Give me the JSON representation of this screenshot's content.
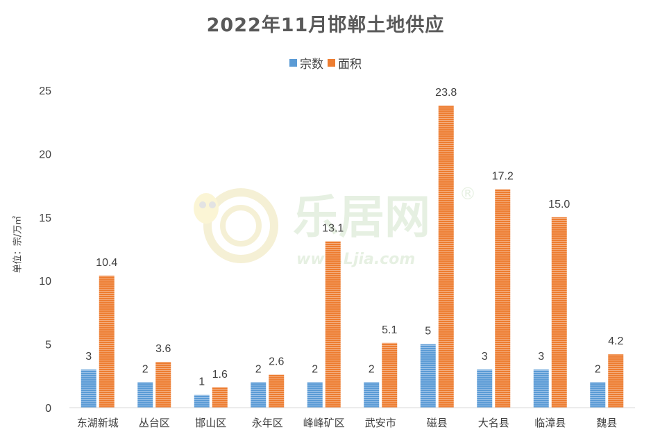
{
  "chart_data": {
    "type": "bar",
    "title": "2022年11月邯郸土地供应",
    "ylabel": "单位：宗/万㎡",
    "xlabel": "",
    "ylim": [
      0,
      25
    ],
    "yticks": [
      "0",
      "5",
      "10",
      "15",
      "20",
      "25"
    ],
    "grid": false,
    "legend_position": "top-center",
    "categories": [
      "东湖新城",
      "丛台区",
      "邯山区",
      "永年区",
      "峰峰矿区",
      "武安市",
      "磁县",
      "大名县",
      "临漳县",
      "魏县"
    ],
    "series": [
      {
        "name": "宗数",
        "color": "#5b9bd5",
        "values": [
          3,
          2,
          1,
          2,
          2,
          2,
          5,
          3,
          3,
          2
        ],
        "labels": [
          "3",
          "2",
          "1",
          "2",
          "2",
          "2",
          "5",
          "3",
          "3",
          "2"
        ]
      },
      {
        "name": "面积",
        "color": "#ed7d31",
        "values": [
          10.4,
          3.6,
          1.6,
          2.6,
          13.1,
          5.1,
          23.8,
          17.2,
          15.0,
          4.2
        ],
        "labels": [
          "10.4",
          "3.6",
          "1.6",
          "2.6",
          "13.1",
          "5.1",
          "23.8",
          "17.2",
          "15.0",
          "4.2"
        ]
      }
    ]
  },
  "watermark": {
    "logo_text": "乐居网",
    "url_text": "www.Ljia.com",
    "registered": "®"
  }
}
